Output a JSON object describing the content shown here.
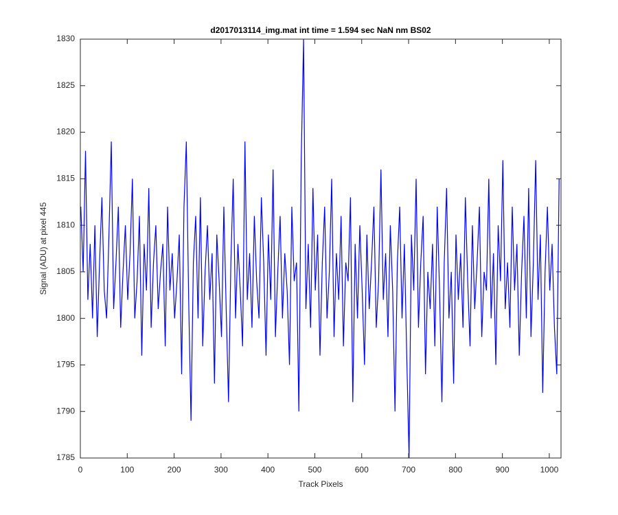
{
  "chart_data": {
    "type": "line",
    "title": "d2017013114_img.mat int time = 1.594 sec  NaN nm BS02",
    "xlabel": "Track Pixels",
    "ylabel": "Signal (ADU) at pixel 445",
    "xlim": [
      0,
      1025
    ],
    "ylim": [
      1785,
      1830
    ],
    "xticks": [
      0,
      100,
      200,
      300,
      400,
      500,
      600,
      700,
      800,
      900,
      1000
    ],
    "yticks": [
      1785,
      1790,
      1795,
      1800,
      1805,
      1810,
      1815,
      1820,
      1825,
      1830
    ],
    "x": [
      1,
      6,
      11,
      16,
      21,
      26,
      31,
      36,
      41,
      46,
      51,
      56,
      61,
      66,
      71,
      76,
      81,
      86,
      91,
      96,
      101,
      106,
      111,
      116,
      121,
      126,
      131,
      136,
      141,
      146,
      151,
      156,
      161,
      166,
      171,
      176,
      181,
      186,
      191,
      196,
      201,
      206,
      211,
      216,
      221,
      226,
      231,
      236,
      241,
      246,
      251,
      256,
      261,
      266,
      271,
      276,
      281,
      286,
      291,
      296,
      301,
      306,
      311,
      316,
      321,
      326,
      331,
      336,
      341,
      346,
      351,
      356,
      361,
      366,
      371,
      376,
      381,
      386,
      391,
      396,
      401,
      406,
      411,
      416,
      421,
      426,
      431,
      436,
      441,
      446,
      451,
      456,
      461,
      466,
      471,
      476,
      481,
      486,
      491,
      496,
      501,
      506,
      511,
      516,
      521,
      526,
      531,
      536,
      541,
      546,
      551,
      556,
      561,
      566,
      571,
      576,
      581,
      586,
      591,
      596,
      601,
      606,
      611,
      616,
      621,
      626,
      631,
      636,
      641,
      646,
      651,
      656,
      661,
      666,
      671,
      676,
      681,
      686,
      691,
      696,
      701,
      706,
      711,
      716,
      721,
      726,
      731,
      736,
      741,
      746,
      751,
      756,
      761,
      766,
      771,
      776,
      781,
      786,
      791,
      796,
      801,
      806,
      811,
      816,
      821,
      826,
      831,
      836,
      841,
      846,
      851,
      856,
      861,
      866,
      871,
      876,
      881,
      886,
      891,
      896,
      901,
      906,
      911,
      916,
      921,
      926,
      931,
      936,
      941,
      946,
      951,
      956,
      961,
      966,
      971,
      976,
      981,
      986,
      991,
      996,
      1001,
      1006,
      1011,
      1016,
      1021
    ],
    "series": [
      {
        "color": "#0000ff",
        "values": [
          1812,
          1805,
          1818,
          1802,
          1808,
          1800,
          1810,
          1798,
          1806,
          1813,
          1803,
          1800,
          1809,
          1819,
          1801,
          1806,
          1812,
          1799,
          1805,
          1810,
          1802,
          1807,
          1815,
          1800,
          1804,
          1811,
          1796,
          1808,
          1803,
          1814,
          1799,
          1806,
          1810,
          1801,
          1805,
          1808,
          1797,
          1812,
          1803,
          1807,
          1800,
          1804,
          1809,
          1794,
          1812,
          1819,
          1802,
          1789,
          1806,
          1811,
          1800,
          1813,
          1797,
          1805,
          1810,
          1802,
          1807,
          1793,
          1809,
          1804,
          1798,
          1812,
          1801,
          1791,
          1806,
          1815,
          1800,
          1808,
          1803,
          1797,
          1819,
          1802,
          1807,
          1799,
          1811,
          1804,
          1800,
          1813,
          1806,
          1796,
          1809,
          1802,
          1816,
          1798,
          1805,
          1811,
          1800,
          1807,
          1803,
          1795,
          1812,
          1804,
          1806,
          1790,
          1817,
          1830,
          1801,
          1808,
          1799,
          1814,
          1803,
          1809,
          1796,
          1806,
          1812,
          1800,
          1805,
          1815,
          1798,
          1807,
          1802,
          1811,
          1797,
          1806,
          1804,
          1813,
          1791,
          1808,
          1800,
          1810,
          1803,
          1795,
          1809,
          1801,
          1806,
          1812,
          1799,
          1804,
          1816,
          1802,
          1807,
          1798,
          1810,
          1803,
          1790,
          1806,
          1812,
          1800,
          1808,
          1796,
          1785,
          1809,
          1803,
          1815,
          1799,
          1806,
          1811,
          1794,
          1805,
          1801,
          1808,
          1797,
          1812,
          1803,
          1791,
          1806,
          1814,
          1800,
          1805,
          1793,
          1809,
          1802,
          1807,
          1799,
          1813,
          1804,
          1797,
          1810,
          1801,
          1806,
          1812,
          1798,
          1805,
          1803,
          1815,
          1800,
          1807,
          1795,
          1810,
          1804,
          1817,
          1801,
          1806,
          1799,
          1812,
          1803,
          1808,
          1796,
          1805,
          1811,
          1800,
          1814,
          1798,
          1806,
          1817,
          1802,
          1809,
          1792,
          1805,
          1812,
          1803,
          1808,
          1799,
          1794,
          1815
        ]
      }
    ]
  }
}
